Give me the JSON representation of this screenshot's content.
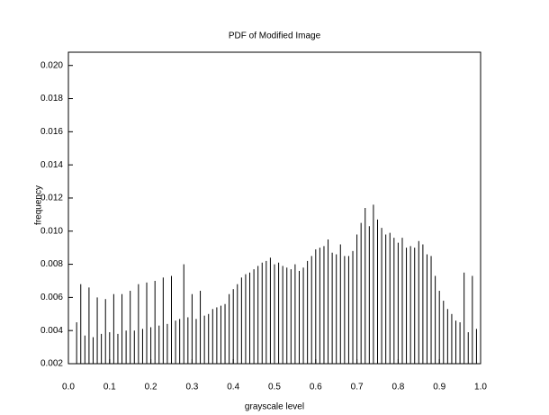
{
  "chart_data": {
    "type": "stem",
    "title": "PDF of Modified Image",
    "x_label": "grayscale level",
    "y_label": "frequency",
    "color": "#000000",
    "x": [
      0.02,
      0.03,
      0.04,
      0.05,
      0.06,
      0.07,
      0.08,
      0.09,
      0.1,
      0.11,
      0.12,
      0.13,
      0.14,
      0.15,
      0.16,
      0.17,
      0.18,
      0.19,
      0.2,
      0.21,
      0.22,
      0.23,
      0.24,
      0.25,
      0.26,
      0.27,
      0.28,
      0.29,
      0.3,
      0.31,
      0.32,
      0.33,
      0.34,
      0.35,
      0.36,
      0.37,
      0.38,
      0.39,
      0.4,
      0.41,
      0.42,
      0.43,
      0.44,
      0.45,
      0.46,
      0.47,
      0.48,
      0.49,
      0.5,
      0.51,
      0.52,
      0.53,
      0.54,
      0.55,
      0.56,
      0.57,
      0.58,
      0.59,
      0.6,
      0.61,
      0.62,
      0.63,
      0.64,
      0.65,
      0.66,
      0.67,
      0.68,
      0.69,
      0.7,
      0.71,
      0.72,
      0.73,
      0.74,
      0.75,
      0.76,
      0.77,
      0.78,
      0.79,
      0.8,
      0.81,
      0.82,
      0.83,
      0.84,
      0.85,
      0.86,
      0.87,
      0.88,
      0.89,
      0.9,
      0.91,
      0.92,
      0.93,
      0.94,
      0.95,
      0.96,
      0.97,
      0.98,
      0.99
    ],
    "values": [
      0.0045,
      0.0068,
      0.0037,
      0.0066,
      0.0036,
      0.006,
      0.0038,
      0.0059,
      0.0039,
      0.0062,
      0.0038,
      0.0062,
      0.004,
      0.0064,
      0.004,
      0.0068,
      0.0041,
      0.0069,
      0.0042,
      0.007,
      0.0043,
      0.0072,
      0.0044,
      0.0073,
      0.0046,
      0.0047,
      0.008,
      0.0048,
      0.0062,
      0.0047,
      0.0064,
      0.0049,
      0.005,
      0.0053,
      0.0054,
      0.0055,
      0.0056,
      0.0062,
      0.0065,
      0.0068,
      0.0072,
      0.0074,
      0.0075,
      0.0077,
      0.0079,
      0.0081,
      0.0082,
      0.0084,
      0.008,
      0.0081,
      0.0079,
      0.0078,
      0.0077,
      0.008,
      0.0076,
      0.0078,
      0.0082,
      0.0085,
      0.0089,
      0.009,
      0.0091,
      0.0095,
      0.0087,
      0.0086,
      0.0092,
      0.0085,
      0.0085,
      0.0088,
      0.0098,
      0.0105,
      0.0114,
      0.0103,
      0.0116,
      0.0107,
      0.0102,
      0.0098,
      0.0099,
      0.0096,
      0.0093,
      0.0096,
      0.009,
      0.0091,
      0.009,
      0.0094,
      0.0092,
      0.0086,
      0.0085,
      0.0073,
      0.0064,
      0.0058,
      0.0053,
      0.005,
      0.0046,
      0.0045,
      0.0075,
      0.0039,
      0.0073,
      0.0041
    ],
    "xlim": [
      0,
      1
    ],
    "ylim": [
      0.002,
      0.0208
    ],
    "xticks": [
      {
        "value": 0,
        "label": "0.0"
      },
      0.1,
      0.2,
      0.3,
      0.4,
      0.5,
      0.6,
      0.7,
      0.8,
      0.9,
      {
        "value": 1,
        "label": "1.0"
      }
    ],
    "yticks": [
      0.002,
      0.004,
      0.006,
      0.008,
      {
        "value": 0.01,
        "label": "0.010"
      },
      0.012,
      0.014,
      0.016,
      0.018,
      {
        "value": 0.02,
        "label": "0.020"
      }
    ],
    "grid": false
  }
}
